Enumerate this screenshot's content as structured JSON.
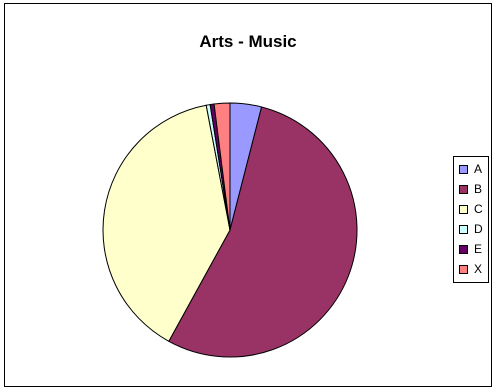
{
  "chart_data": {
    "type": "pie",
    "title": "Arts - Music",
    "categories": [
      "A",
      "B",
      "C",
      "D",
      "E",
      "X"
    ],
    "values": [
      4.0,
      54.0,
      39.0,
      0.5,
      0.5,
      2.0
    ],
    "colors": [
      "#9999ff",
      "#993366",
      "#ffffcc",
      "#ccffff",
      "#660066",
      "#ff8080"
    ],
    "legend_position": "right",
    "start_angle_deg": 0,
    "direction": "clockwise"
  }
}
